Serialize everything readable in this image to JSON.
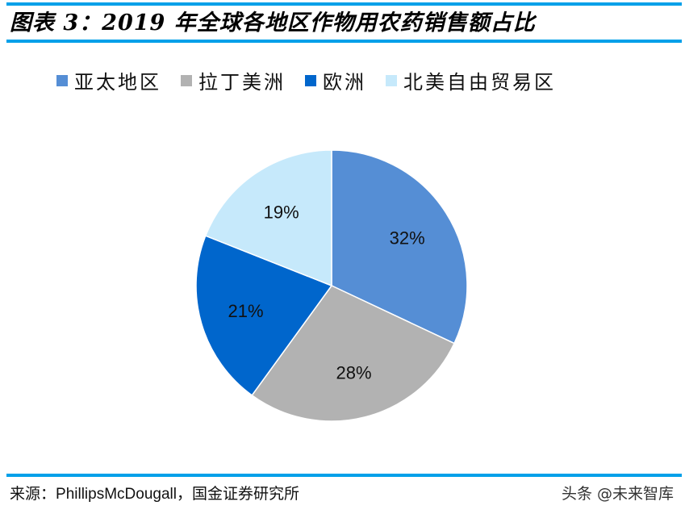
{
  "header": {
    "title": "图表 3：2019 年全球各地区作物用农药销售额占比"
  },
  "legend": [
    {
      "label": "亚太地区",
      "color": "#558ed5"
    },
    {
      "label": "拉丁美洲",
      "color": "#b2b2b2"
    },
    {
      "label": "欧洲",
      "color": "#0066cc"
    },
    {
      "label": "北美自由贸易区",
      "color": "#c6e9fb"
    }
  ],
  "footer": {
    "source_prefix": "来源：",
    "source_en": "PhillipsMcDougall，",
    "source_cn": "国金证券研究所",
    "watermark": "头条 @未来智库"
  },
  "chart_data": {
    "type": "pie",
    "title": "2019 年全球各地区作物用农药销售额占比",
    "categories": [
      "亚太地区",
      "拉丁美洲",
      "欧洲",
      "北美自由贸易区"
    ],
    "values": [
      32,
      28,
      21,
      19
    ],
    "labels": [
      "32%",
      "28%",
      "21%",
      "19%"
    ],
    "colors": [
      "#558ed5",
      "#b2b2b2",
      "#0066cc",
      "#c6e9fb"
    ],
    "start_angle": "12 o'clock, clockwise",
    "legend_position": "top"
  }
}
